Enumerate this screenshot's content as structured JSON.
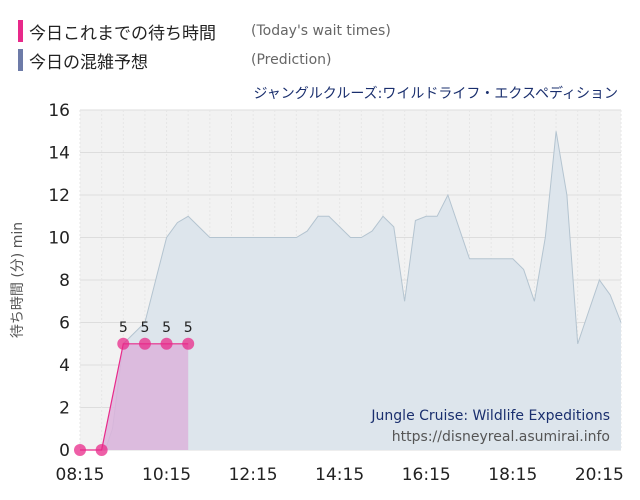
{
  "legend": [
    {
      "label": "今日これまでの待ち時間",
      "note": "(Today's wait times)",
      "color": "#e8298a"
    },
    {
      "label": "今日の混雑予想",
      "note": "(Prediction)",
      "color": "#6d7ba8"
    }
  ],
  "watermark": {
    "title": "Jungle Cruise: Wildlife Expeditions",
    "url": "https://disneyreal.asumirai.info"
  },
  "chart_data": {
    "type": "area",
    "title": "ジャングルクルーズ:ワイルドライフ・エクスペディション",
    "ylabel": "待ち時間 (分) min",
    "ylim": [
      0,
      16
    ],
    "yticks": [
      "0",
      "2",
      "4",
      "6",
      "8",
      "10",
      "12",
      "14",
      "16"
    ],
    "xticks": [
      "08:15",
      "10:15",
      "12:15",
      "14:15",
      "16:15",
      "18:15",
      "20:15"
    ],
    "xrange": [
      "08:15",
      "20:45"
    ],
    "grid": true,
    "colors": {
      "today_line": "#e8298a",
      "today_fill": "#dcb4dc",
      "prediction_fill": "#dde5ec",
      "prediction_line": "#b4c4d0"
    },
    "series": [
      {
        "name": "今日の混雑予想",
        "x": [
          "08:15",
          "08:50",
          "09:00",
          "09:15",
          "09:30",
          "09:45",
          "10:00",
          "10:15",
          "10:30",
          "10:45",
          "11:00",
          "11:15",
          "11:30",
          "11:45",
          "12:15",
          "12:45",
          "13:15",
          "13:30",
          "13:45",
          "14:00",
          "14:30",
          "14:45",
          "15:00",
          "15:15",
          "15:30",
          "15:45",
          "16:00",
          "16:15",
          "16:30",
          "16:45",
          "17:15",
          "17:45",
          "18:15",
          "18:30",
          "18:45",
          "19:00",
          "19:15",
          "19:30",
          "19:45",
          "20:00",
          "20:15",
          "20:30",
          "20:45"
        ],
        "values": [
          0,
          0,
          1,
          5,
          5.5,
          6,
          8,
          10,
          10.7,
          11,
          10.5,
          10,
          10,
          10,
          10,
          10,
          10,
          10.3,
          11,
          11,
          10,
          10,
          10.3,
          11,
          10.5,
          7,
          10.8,
          11,
          11,
          12,
          9,
          9,
          9,
          8.5,
          7,
          10,
          15,
          12,
          5,
          6.5,
          8,
          7.3,
          6
        ]
      },
      {
        "name": "今日これまでの待ち時間",
        "x": [
          "08:15",
          "08:45",
          "09:15",
          "09:45",
          "10:15",
          "10:45"
        ],
        "values": [
          0,
          0,
          5,
          5,
          5,
          5
        ],
        "data_labels": [
          "",
          "",
          "5",
          "5",
          "5",
          "5"
        ]
      }
    ]
  }
}
